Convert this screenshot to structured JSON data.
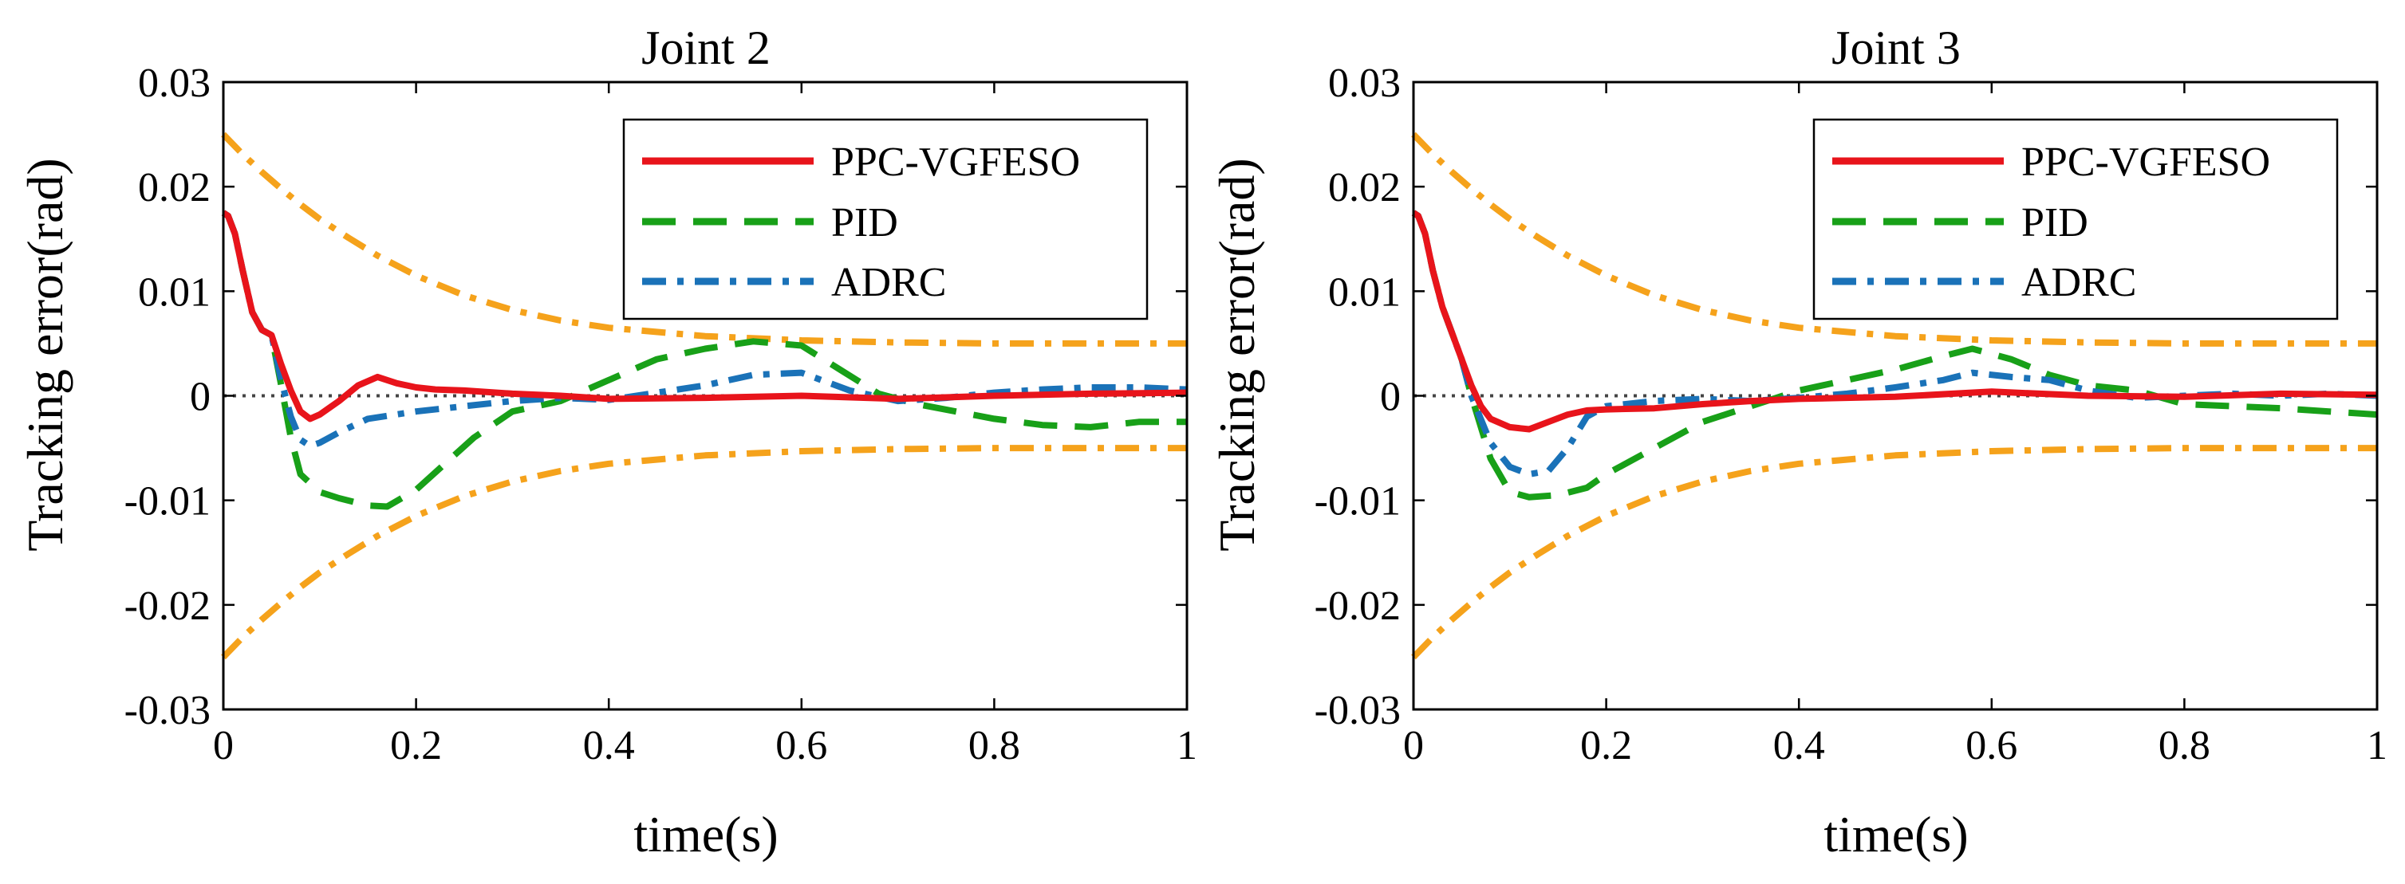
{
  "chart_data": [
    {
      "type": "line",
      "title": "Joint 2",
      "xlabel": "time(s)",
      "ylabel": "Tracking error(rad)",
      "xlim": [
        0,
        1
      ],
      "ylim": [
        -0.03,
        0.03
      ],
      "xticks": [
        "0",
        "0.2",
        "0.4",
        "0.6",
        "0.8",
        "1"
      ],
      "yticks": [
        "0.03",
        "0.02",
        "0.01",
        "0",
        "-0.01",
        "-0.02",
        "-0.03"
      ],
      "legend": {
        "position": "top-right",
        "entries": [
          "PPC-VGFESO",
          "PID",
          "ADRC"
        ]
      },
      "series": [
        {
          "name": "PPC-VGFESO",
          "color": "#e8141b",
          "style": "solid",
          "x": [
            0,
            0.005,
            0.012,
            0.02,
            0.03,
            0.04,
            0.05,
            0.06,
            0.07,
            0.08,
            0.09,
            0.1,
            0.12,
            0.14,
            0.16,
            0.18,
            0.2,
            0.22,
            0.25,
            0.3,
            0.35,
            0.4,
            0.5,
            0.6,
            0.7,
            0.8,
            0.9,
            1.0
          ],
          "values": [
            0.0175,
            0.0172,
            0.0155,
            0.012,
            0.008,
            0.0063,
            0.0058,
            0.003,
            0.0005,
            -0.0015,
            -0.0022,
            -0.0018,
            -0.0005,
            0.001,
            0.0018,
            0.0012,
            0.0008,
            0.0006,
            0.0005,
            0.0002,
            0.0,
            -0.0003,
            -0.0002,
            0.0,
            -0.0003,
            0.0,
            0.0002,
            0.0003
          ]
        },
        {
          "name": "PID",
          "color": "#18a018",
          "style": "dashed",
          "x": [
            0,
            0.005,
            0.012,
            0.02,
            0.03,
            0.04,
            0.05,
            0.06,
            0.07,
            0.08,
            0.1,
            0.12,
            0.15,
            0.17,
            0.2,
            0.23,
            0.26,
            0.3,
            0.35,
            0.4,
            0.45,
            0.5,
            0.55,
            0.6,
            0.64,
            0.68,
            0.72,
            0.76,
            0.8,
            0.85,
            0.9,
            0.95,
            1.0
          ],
          "values": [
            0.0175,
            0.0172,
            0.0155,
            0.012,
            0.008,
            0.0063,
            0.0058,
            0.001,
            -0.004,
            -0.0075,
            -0.0092,
            -0.0098,
            -0.0105,
            -0.0106,
            -0.009,
            -0.0065,
            -0.004,
            -0.0015,
            -0.0005,
            0.0015,
            0.0035,
            0.0045,
            0.0052,
            0.0048,
            0.0025,
            0.0002,
            -0.0008,
            -0.0015,
            -0.0022,
            -0.0028,
            -0.003,
            -0.0025,
            -0.0025
          ]
        },
        {
          "name": "ADRC",
          "color": "#1a72b8",
          "style": "dashdot",
          "x": [
            0,
            0.005,
            0.012,
            0.02,
            0.03,
            0.04,
            0.05,
            0.06,
            0.07,
            0.08,
            0.09,
            0.1,
            0.12,
            0.15,
            0.2,
            0.25,
            0.3,
            0.35,
            0.4,
            0.45,
            0.5,
            0.55,
            0.6,
            0.65,
            0.7,
            0.75,
            0.8,
            0.85,
            0.9,
            0.95,
            1.0
          ],
          "values": [
            0.0175,
            0.0172,
            0.0155,
            0.012,
            0.008,
            0.0063,
            0.0058,
            0.0015,
            -0.002,
            -0.0042,
            -0.0048,
            -0.0045,
            -0.0035,
            -0.0022,
            -0.0015,
            -0.001,
            -0.0005,
            -0.0002,
            -0.0004,
            0.0003,
            0.001,
            0.002,
            0.0022,
            0.0005,
            -0.0005,
            -0.0002,
            0.0003,
            0.0006,
            0.0008,
            0.0008,
            0.0006
          ]
        },
        {
          "name": "Upper bound",
          "color": "#f5a21b",
          "style": "dashdot",
          "x": [
            0,
            0.02,
            0.04,
            0.06,
            0.08,
            0.1,
            0.13,
            0.16,
            0.2,
            0.25,
            0.3,
            0.35,
            0.4,
            0.5,
            0.6,
            0.7,
            0.8,
            0.9,
            1.0
          ],
          "values": [
            0.025,
            0.0231,
            0.0214,
            0.0198,
            0.0183,
            0.0169,
            0.0151,
            0.0134,
            0.0115,
            0.0096,
            0.0082,
            0.0072,
            0.0065,
            0.0057,
            0.0053,
            0.0051,
            0.005,
            0.005,
            0.005
          ]
        },
        {
          "name": "Lower bound",
          "color": "#f5a21b",
          "style": "dashdot",
          "x": [
            0,
            0.02,
            0.04,
            0.06,
            0.08,
            0.1,
            0.13,
            0.16,
            0.2,
            0.25,
            0.3,
            0.35,
            0.4,
            0.5,
            0.6,
            0.7,
            0.8,
            0.9,
            1.0
          ],
          "values": [
            -0.025,
            -0.0231,
            -0.0214,
            -0.0198,
            -0.0183,
            -0.0169,
            -0.0151,
            -0.0134,
            -0.0115,
            -0.0096,
            -0.0082,
            -0.0072,
            -0.0065,
            -0.0057,
            -0.0053,
            -0.0051,
            -0.005,
            -0.005,
            -0.005
          ]
        },
        {
          "name": "Zero reference",
          "color": "#444444",
          "style": "dotted",
          "x": [
            0,
            1
          ],
          "values": [
            0,
            0
          ]
        }
      ]
    },
    {
      "type": "line",
      "title": "Joint 3",
      "xlabel": "time(s)",
      "ylabel": "Tracking error(rad)",
      "xlim": [
        0,
        1
      ],
      "ylim": [
        -0.03,
        0.03
      ],
      "xticks": [
        "0",
        "0.2",
        "0.4",
        "0.6",
        "0.8",
        "1"
      ],
      "yticks": [
        "0.03",
        "0.02",
        "0.01",
        "0",
        "-0.01",
        "-0.02",
        "-0.03"
      ],
      "legend": {
        "position": "top-right",
        "entries": [
          "PPC-VGFESO",
          "PID",
          "ADRC"
        ]
      },
      "series": [
        {
          "name": "PPC-VGFESO",
          "color": "#e8141b",
          "style": "solid",
          "x": [
            0,
            0.005,
            0.012,
            0.02,
            0.03,
            0.04,
            0.05,
            0.06,
            0.07,
            0.08,
            0.1,
            0.12,
            0.14,
            0.16,
            0.18,
            0.2,
            0.25,
            0.3,
            0.35,
            0.4,
            0.5,
            0.6,
            0.7,
            0.8,
            0.9,
            1.0
          ],
          "values": [
            0.0175,
            0.0172,
            0.0155,
            0.012,
            0.0085,
            0.006,
            0.0035,
            0.001,
            -0.001,
            -0.0022,
            -0.003,
            -0.0032,
            -0.0025,
            -0.0018,
            -0.0014,
            -0.0013,
            -0.0012,
            -0.0008,
            -0.0005,
            -0.0003,
            -0.0001,
            0.0004,
            0.0,
            -0.0001,
            0.0002,
            0.0001
          ]
        },
        {
          "name": "PID",
          "color": "#18a018",
          "style": "dashed",
          "x": [
            0,
            0.005,
            0.012,
            0.02,
            0.03,
            0.04,
            0.05,
            0.06,
            0.08,
            0.1,
            0.12,
            0.15,
            0.18,
            0.2,
            0.25,
            0.3,
            0.35,
            0.4,
            0.45,
            0.5,
            0.55,
            0.58,
            0.62,
            0.66,
            0.7,
            0.75,
            0.8,
            0.85,
            0.9,
            0.95,
            1.0
          ],
          "values": [
            0.0175,
            0.0172,
            0.0155,
            0.012,
            0.0085,
            0.006,
            0.0035,
            0.0,
            -0.006,
            -0.0092,
            -0.0097,
            -0.0095,
            -0.0088,
            -0.0075,
            -0.005,
            -0.0025,
            -0.001,
            0.0005,
            0.0015,
            0.0025,
            0.0038,
            0.0045,
            0.0035,
            0.002,
            0.001,
            0.0005,
            -0.0008,
            -0.001,
            -0.0012,
            -0.0015,
            -0.0018
          ]
        },
        {
          "name": "ADRC",
          "color": "#1a72b8",
          "style": "dashdot",
          "x": [
            0,
            0.005,
            0.012,
            0.02,
            0.03,
            0.04,
            0.05,
            0.06,
            0.08,
            0.1,
            0.12,
            0.14,
            0.16,
            0.18,
            0.2,
            0.25,
            0.3,
            0.35,
            0.4,
            0.45,
            0.5,
            0.55,
            0.58,
            0.62,
            0.66,
            0.7,
            0.75,
            0.8,
            0.85,
            0.9,
            0.95,
            1.0
          ],
          "values": [
            0.0175,
            0.0172,
            0.0155,
            0.012,
            0.0085,
            0.006,
            0.0035,
            0.0,
            -0.0045,
            -0.0068,
            -0.0075,
            -0.0072,
            -0.005,
            -0.002,
            -0.001,
            -0.0005,
            -0.0003,
            -0.0005,
            -0.0002,
            0.0002,
            0.0008,
            0.0015,
            0.0022,
            0.0018,
            0.0015,
            0.0005,
            -0.0002,
            0.0,
            0.0002,
            0.0,
            0.0002,
            0.0
          ]
        },
        {
          "name": "Upper bound",
          "color": "#f5a21b",
          "style": "dashdot",
          "x": [
            0,
            0.02,
            0.04,
            0.06,
            0.08,
            0.1,
            0.13,
            0.16,
            0.2,
            0.25,
            0.3,
            0.35,
            0.4,
            0.5,
            0.6,
            0.7,
            0.8,
            0.9,
            1.0
          ],
          "values": [
            0.025,
            0.0231,
            0.0214,
            0.0198,
            0.0183,
            0.0169,
            0.0151,
            0.0134,
            0.0115,
            0.0096,
            0.0082,
            0.0072,
            0.0065,
            0.0057,
            0.0053,
            0.0051,
            0.005,
            0.005,
            0.005
          ]
        },
        {
          "name": "Lower bound",
          "color": "#f5a21b",
          "style": "dashdot",
          "x": [
            0,
            0.02,
            0.04,
            0.06,
            0.08,
            0.1,
            0.13,
            0.16,
            0.2,
            0.25,
            0.3,
            0.35,
            0.4,
            0.5,
            0.6,
            0.7,
            0.8,
            0.9,
            1.0
          ],
          "values": [
            -0.025,
            -0.0231,
            -0.0214,
            -0.0198,
            -0.0183,
            -0.0169,
            -0.0151,
            -0.0134,
            -0.0115,
            -0.0096,
            -0.0082,
            -0.0072,
            -0.0065,
            -0.0057,
            -0.0053,
            -0.0051,
            -0.005,
            -0.005,
            -0.005
          ]
        },
        {
          "name": "Zero reference",
          "color": "#444444",
          "style": "dotted",
          "x": [
            0,
            1
          ],
          "values": [
            0,
            0
          ]
        }
      ]
    }
  ]
}
